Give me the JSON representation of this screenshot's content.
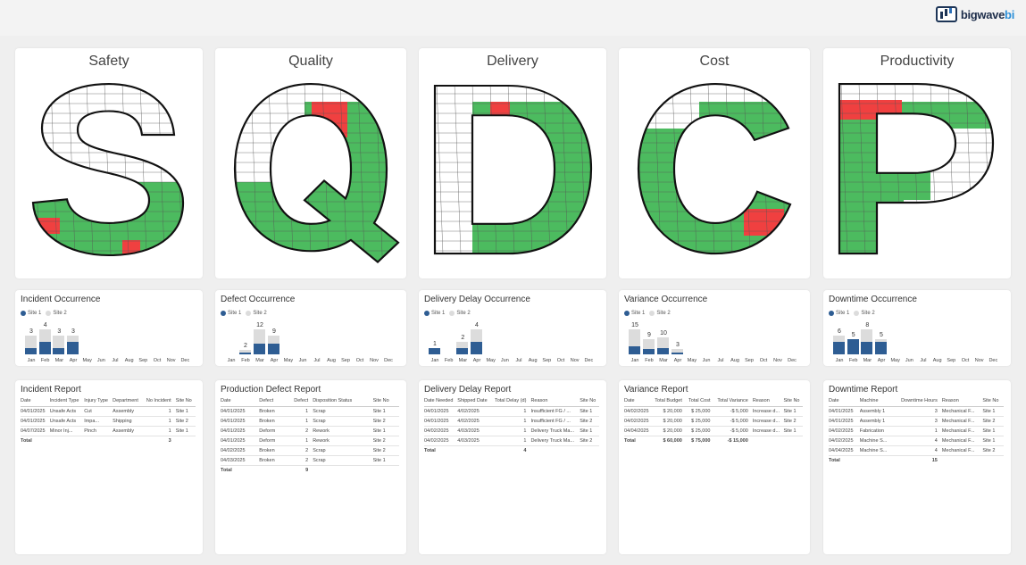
{
  "brand": {
    "name_main": "bigwave",
    "name_accent": "bi"
  },
  "colors": {
    "green": "#4cbb5f",
    "red": "#f04040",
    "site1": "#2e5d93",
    "site2": "#dcdcdc"
  },
  "letters": [
    {
      "key": "S",
      "title": "Safety"
    },
    {
      "key": "Q",
      "title": "Quality"
    },
    {
      "key": "D",
      "title": "Delivery"
    },
    {
      "key": "C",
      "title": "Cost"
    },
    {
      "key": "P",
      "title": "Productivity"
    }
  ],
  "legend": {
    "site1": "Site 1",
    "site2": "Site 2"
  },
  "months": [
    "Jan",
    "Feb",
    "Mar",
    "Apr",
    "May",
    "Jun",
    "Jul",
    "Aug",
    "Sep",
    "Oct",
    "Nov",
    "Dec"
  ],
  "occurrence_charts": [
    {
      "title": "Incident Occurrence",
      "labels": [
        "3",
        "4",
        "3",
        "3"
      ],
      "chart_data": {
        "type": "bar",
        "categories": [
          "Jan",
          "Feb",
          "Mar",
          "Apr"
        ],
        "series": [
          {
            "name": "Site 1",
            "values": [
              1,
              2,
              1,
              2
            ]
          },
          {
            "name": "Site 2",
            "values": [
              2,
              2,
              2,
              1
            ]
          }
        ],
        "totals": [
          3,
          4,
          3,
          3
        ]
      }
    },
    {
      "title": "Defect Occurrence",
      "labels": [
        "2",
        "12",
        "9"
      ],
      "chart_data": {
        "type": "bar",
        "categories": [
          "Feb",
          "Mar",
          "Apr"
        ],
        "series": [
          {
            "name": "Site 1",
            "values": [
              1,
              5,
              5
            ]
          },
          {
            "name": "Site 2",
            "values": [
              1,
              7,
              4
            ]
          }
        ],
        "totals": [
          2,
          12,
          9
        ]
      }
    },
    {
      "title": "Delivery Delay Occurrence",
      "labels": [
        "1",
        "2",
        "4"
      ],
      "chart_data": {
        "type": "bar",
        "categories": [
          "Jan",
          "Mar",
          "Apr"
        ],
        "series": [
          {
            "name": "Site 1",
            "values": [
              1,
              1,
              2
            ]
          },
          {
            "name": "Site 2",
            "values": [
              0,
              1,
              2
            ]
          }
        ],
        "totals": [
          1,
          2,
          4
        ]
      }
    },
    {
      "title": "Variance Occurrence",
      "labels": [
        "15",
        "9",
        "10",
        "3"
      ],
      "chart_data": {
        "type": "bar",
        "categories": [
          "Jan",
          "Feb",
          "Mar",
          "Apr"
        ],
        "series": [
          {
            "name": "Site 1",
            "values": [
              5,
              3,
              4,
              1
            ]
          },
          {
            "name": "Site 2",
            "values": [
              10,
              6,
              6,
              2
            ]
          }
        ],
        "totals": [
          15,
          9,
          10,
          3
        ]
      }
    },
    {
      "title": "Downtime Occurrence",
      "labels": [
        "6",
        "5",
        "8",
        "5"
      ],
      "chart_data": {
        "type": "bar",
        "categories": [
          "Jan",
          "Feb",
          "Mar",
          "Apr"
        ],
        "series": [
          {
            "name": "Site 1",
            "values": [
              4,
              5,
              4,
              4
            ]
          },
          {
            "name": "Site 2",
            "values": [
              2,
              0,
              4,
              1
            ]
          }
        ],
        "totals": [
          6,
          5,
          8,
          5
        ]
      }
    }
  ],
  "reports": [
    {
      "title": "Incident Report",
      "columns": [
        "Date",
        "Incident Type",
        "Injury Type",
        "Department",
        "No Incident",
        "Site No"
      ],
      "num_cols": [
        4
      ],
      "rows": [
        [
          "04/01/2025",
          "Unsafe Acts",
          "Cut",
          "Assembly",
          "1",
          "Site 1"
        ],
        [
          "04/01/2025",
          "Unsafe Acts",
          "Impa...",
          "Shipping",
          "1",
          "Site 2"
        ],
        [
          "04/07/2025",
          "Minor Inj...",
          "Pinch",
          "Assembly",
          "1",
          "Site 1"
        ]
      ],
      "total": [
        "Total",
        "",
        "",
        "",
        "3",
        ""
      ]
    },
    {
      "title": "Production Defect Report",
      "columns": [
        "Date",
        "Defect",
        "Defect",
        "Disposition Status",
        "Site No"
      ],
      "num_cols": [
        2
      ],
      "rows": [
        [
          "04/01/2025",
          "Broken",
          "1",
          "Scrap",
          "Site 1"
        ],
        [
          "04/01/2025",
          "Broken",
          "1",
          "Scrap",
          "Site 2"
        ],
        [
          "04/01/2025",
          "Deform",
          "2",
          "Rework",
          "Site 1"
        ],
        [
          "04/01/2025",
          "Deform",
          "1",
          "Rework",
          "Site 2"
        ],
        [
          "04/02/2025",
          "Broken",
          "2",
          "Scrap",
          "Site 2"
        ],
        [
          "04/03/2025",
          "Broken",
          "2",
          "Scrap",
          "Site 1"
        ]
      ],
      "total": [
        "Total",
        "",
        "9",
        "",
        ""
      ]
    },
    {
      "title": "Delivery Delay Report",
      "columns": [
        "Date Needed",
        "Shipped Date",
        "Total Delay (d)",
        "Reason",
        "Site No"
      ],
      "num_cols": [
        2
      ],
      "rows": [
        [
          "04/01/2025",
          "4/02/2025",
          "1",
          "Insufficient FG / ...",
          "Site 1"
        ],
        [
          "04/01/2025",
          "4/02/2025",
          "1",
          "Insufficient FG / ...",
          "Site 2"
        ],
        [
          "04/02/2025",
          "4/03/2025",
          "1",
          "Delivery Truck Ma...",
          "Site 1"
        ],
        [
          "04/02/2025",
          "4/03/2025",
          "1",
          "Delivery Truck Ma...",
          "Site 2"
        ]
      ],
      "total": [
        "Total",
        "",
        "4",
        "",
        ""
      ]
    },
    {
      "title": "Variance Report",
      "columns": [
        "Date",
        "Total Budget",
        "Total Cost",
        "Total Variance",
        "Reason",
        "Site No"
      ],
      "num_cols": [
        1,
        2,
        3
      ],
      "rows": [
        [
          "04/02/2025",
          "$ 20,000",
          "$ 25,000",
          "-$ 5,000",
          "Increase d...",
          "Site 1"
        ],
        [
          "04/02/2025",
          "$ 20,000",
          "$ 25,000",
          "-$ 5,000",
          "Increase d...",
          "Site 2"
        ],
        [
          "04/04/2025",
          "$ 20,000",
          "$ 25,000",
          "-$ 5,000",
          "Increase d...",
          "Site 1"
        ]
      ],
      "total": [
        "Total",
        "$ 60,000",
        "$ 75,000",
        "-$ 15,000",
        "",
        ""
      ]
    },
    {
      "title": "Downtime Report",
      "columns": [
        "Date",
        "Machine",
        "Downtime Hours",
        "Reason",
        "Site No"
      ],
      "num_cols": [
        2
      ],
      "rows": [
        [
          "04/01/2025",
          "Assembly 1",
          "3",
          "Mechanical F...",
          "Site 1"
        ],
        [
          "04/01/2025",
          "Assembly 1",
          "3",
          "Mechanical F...",
          "Site 2"
        ],
        [
          "04/02/2025",
          "Fabrication",
          "1",
          "Mechanical F...",
          "Site 1"
        ],
        [
          "04/02/2025",
          "Machine S...",
          "4",
          "Mechanical F...",
          "Site 1"
        ],
        [
          "04/04/2025",
          "Machine S...",
          "4",
          "Mechanical F...",
          "Site 2"
        ]
      ],
      "total": [
        "Total",
        "",
        "15",
        "",
        ""
      ]
    }
  ]
}
